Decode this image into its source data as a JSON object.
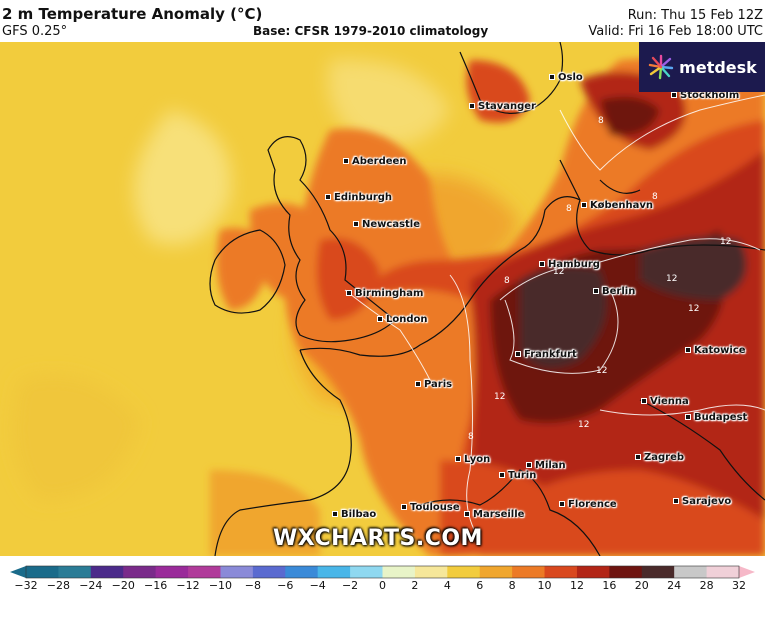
{
  "header": {
    "title": "2 m Temperature Anomaly (°C)",
    "model": "GFS 0.25°",
    "base": "Base: CFSR 1979-2010 climatology",
    "run": "Run: Thu 15 Feb 12Z",
    "valid": "Valid: Fri 16 Feb 18:00 UTC"
  },
  "brand": {
    "logo": "metdesk",
    "watermark": "WXCHARTS.COM"
  },
  "cities": [
    {
      "id": "oslo",
      "name": "Oslo"
    },
    {
      "id": "stavanger",
      "name": "Stavanger"
    },
    {
      "id": "stockholm",
      "name": "Stockholm"
    },
    {
      "id": "aberdeen",
      "name": "Aberdeen"
    },
    {
      "id": "edinburgh",
      "name": "Edinburgh"
    },
    {
      "id": "newcastle",
      "name": "Newcastle"
    },
    {
      "id": "kobenhavn",
      "name": "København"
    },
    {
      "id": "hamburg",
      "name": "Hamburg"
    },
    {
      "id": "berlin",
      "name": "Berlin"
    },
    {
      "id": "birmingham",
      "name": "Birmingham"
    },
    {
      "id": "london",
      "name": "London"
    },
    {
      "id": "frankfurt",
      "name": "Frankfurt"
    },
    {
      "id": "katowice",
      "name": "Katowice"
    },
    {
      "id": "paris",
      "name": "Paris"
    },
    {
      "id": "vienna",
      "name": "Vienna"
    },
    {
      "id": "budapest",
      "name": "Budapest"
    },
    {
      "id": "zagreb",
      "name": "Zagreb"
    },
    {
      "id": "lyon",
      "name": "Lyon"
    },
    {
      "id": "milan",
      "name": "Milan"
    },
    {
      "id": "turin",
      "name": "Turin"
    },
    {
      "id": "florence",
      "name": "Florence"
    },
    {
      "id": "sarajevo",
      "name": "Sarajevo"
    },
    {
      "id": "bilbao",
      "name": "Bilbao"
    },
    {
      "id": "toulouse",
      "name": "Toulouse"
    },
    {
      "id": "marseille",
      "name": "Marseille"
    }
  ],
  "contour_labels": [
    "12",
    "12",
    "12",
    "12",
    "12",
    "8",
    "8",
    "8",
    "8",
    "12",
    "12",
    "8"
  ],
  "legend": {
    "ticks": [
      -32,
      -28,
      -24,
      -20,
      -16,
      -12,
      -10,
      -8,
      -6,
      -4,
      -2,
      0,
      2,
      4,
      6,
      8,
      10,
      12,
      16,
      20,
      24,
      28,
      32
    ],
    "colors": [
      "#1a6b8a",
      "#2a7c96",
      "#4b2a8a",
      "#7a2a8a",
      "#9a2a9a",
      "#b03a9a",
      "#8a8ad8",
      "#5a6ad0",
      "#3a8ad8",
      "#49b6e8",
      "#8fd8f0",
      "#e8f4c8",
      "#f6e79a",
      "#f2cc3d",
      "#f0a62e",
      "#ec7a26",
      "#d9481e",
      "#b22516",
      "#6e1410",
      "#4a2a2a",
      "#c8c8c8",
      "#f0d0d8",
      "#f6b8c8"
    ]
  }
}
